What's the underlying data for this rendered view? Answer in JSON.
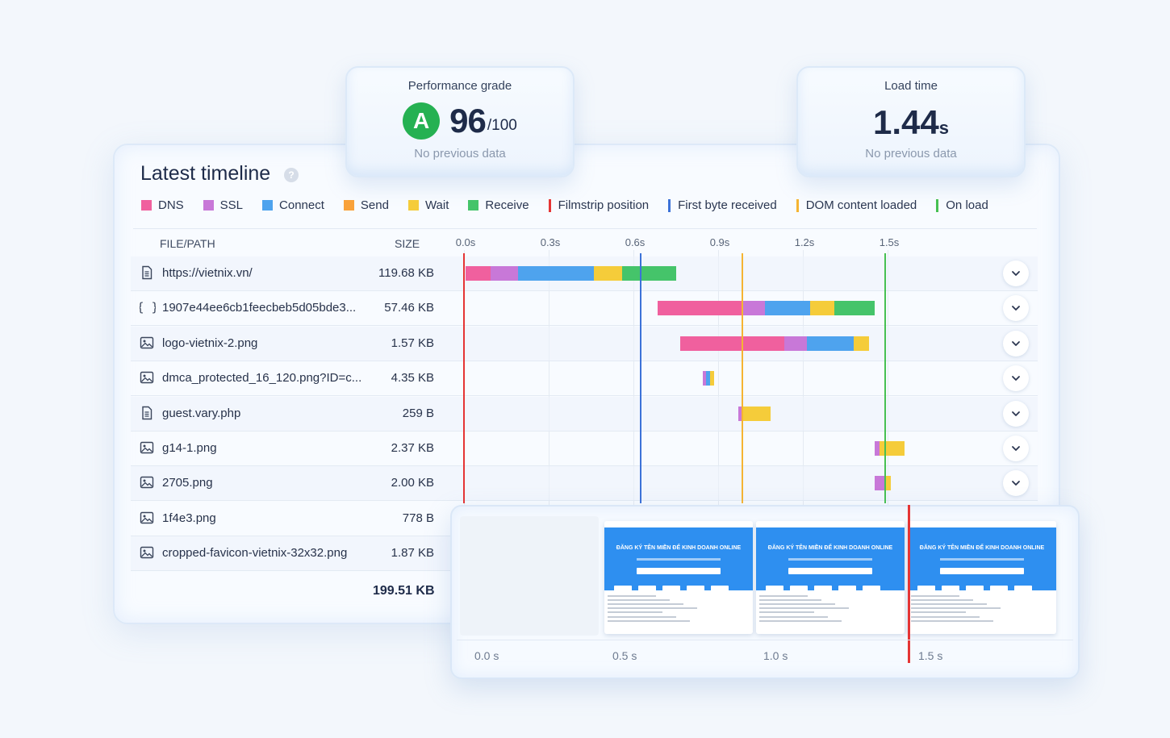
{
  "grade_card": {
    "label": "Performance grade",
    "grade": "A",
    "score": "96",
    "max": "/100",
    "note": "No previous data"
  },
  "load_card": {
    "label": "Load time",
    "value": "1.44",
    "unit": "s",
    "note": "No previous data"
  },
  "timeline": {
    "title": "Latest timeline",
    "help_glyph": "?",
    "legend": [
      {
        "label": "DNS",
        "color": "#f0609e",
        "kind": "swatch"
      },
      {
        "label": "SSL",
        "color": "#c878d8",
        "kind": "swatch"
      },
      {
        "label": "Connect",
        "color": "#4ea3ee",
        "kind": "swatch"
      },
      {
        "label": "Send",
        "color": "#f9a23a",
        "kind": "swatch"
      },
      {
        "label": "Wait",
        "color": "#f5cc3a",
        "kind": "swatch"
      },
      {
        "label": "Receive",
        "color": "#45c46a",
        "kind": "swatch"
      },
      {
        "label": "Filmstrip position",
        "color": "#e53535",
        "kind": "line"
      },
      {
        "label": "First byte received",
        "color": "#3c72d8",
        "kind": "line"
      },
      {
        "label": "DOM content loaded",
        "color": "#f5b432",
        "kind": "line"
      },
      {
        "label": "On load",
        "color": "#47c052",
        "kind": "line"
      }
    ],
    "columns": {
      "file": "FILE/PATH",
      "size": "SIZE"
    },
    "ticks": [
      "0.0s",
      "0.3s",
      "0.6s",
      "0.9s",
      "1.2s",
      "1.5s"
    ],
    "markers": [
      {
        "name": "filmstrip-position",
        "t": 0.0,
        "color": "#e53535"
      },
      {
        "name": "first-byte-received",
        "t": 0.625,
        "color": "#3c72d8"
      },
      {
        "name": "dom-content-loaded",
        "t": 0.985,
        "color": "#f5b432"
      },
      {
        "name": "on-load",
        "t": 1.49,
        "color": "#47c052"
      }
    ],
    "rows": [
      {
        "icon": "document-icon",
        "name": "https://vietnix.vn/",
        "size": "119.68 KB",
        "segments": [
          {
            "t": 0.005,
            "d": 0.09,
            "c": "#f0609e"
          },
          {
            "t": 0.095,
            "d": 0.095,
            "c": "#c878d8"
          },
          {
            "t": 0.19,
            "d": 0.27,
            "c": "#4ea3ee"
          },
          {
            "t": 0.46,
            "d": 0.1,
            "c": "#f5cc3a"
          },
          {
            "t": 0.56,
            "d": 0.19,
            "c": "#45c46a"
          }
        ]
      },
      {
        "icon": "code-icon",
        "name": "1907e44ee6cb1feecbeb5d05bde3...",
        "size": "57.46 KB",
        "segments": [
          {
            "t": 0.685,
            "d": 0.3,
            "c": "#f0609e"
          },
          {
            "t": 0.985,
            "d": 0.08,
            "c": "#c878d8"
          },
          {
            "t": 1.065,
            "d": 0.16,
            "c": "#4ea3ee"
          },
          {
            "t": 1.225,
            "d": 0.085,
            "c": "#f5cc3a"
          },
          {
            "t": 1.31,
            "d": 0.145,
            "c": "#45c46a"
          }
        ]
      },
      {
        "icon": "image-icon",
        "name": "logo-vietnix-2.png",
        "size": "1.57 KB",
        "segments": [
          {
            "t": 0.765,
            "d": 0.37,
            "c": "#f0609e"
          },
          {
            "t": 1.135,
            "d": 0.08,
            "c": "#c878d8"
          },
          {
            "t": 1.215,
            "d": 0.165,
            "c": "#4ea3ee"
          },
          {
            "t": 1.38,
            "d": 0.055,
            "c": "#f5cc3a"
          }
        ]
      },
      {
        "icon": "image-icon",
        "name": "dmca_protected_16_120.png?ID=c...",
        "size": "4.35 KB",
        "segments": [
          {
            "t": 0.845,
            "d": 0.012,
            "c": "#c878d8"
          },
          {
            "t": 0.857,
            "d": 0.015,
            "c": "#4ea3ee"
          },
          {
            "t": 0.872,
            "d": 0.015,
            "c": "#f5cc3a"
          }
        ]
      },
      {
        "icon": "document-icon",
        "name": "guest.vary.php",
        "size": "259 B",
        "segments": [
          {
            "t": 0.97,
            "d": 0.012,
            "c": "#c878d8"
          },
          {
            "t": 0.982,
            "d": 0.105,
            "c": "#f5cc3a"
          }
        ]
      },
      {
        "icon": "image-icon",
        "name": "g14-1.png",
        "size": "2.37 KB",
        "segments": [
          {
            "t": 1.455,
            "d": 0.015,
            "c": "#c878d8"
          },
          {
            "t": 1.47,
            "d": 0.09,
            "c": "#f5cc3a"
          }
        ]
      },
      {
        "icon": "image-icon",
        "name": "2705.png",
        "size": "2.00 KB",
        "segments": [
          {
            "t": 1.455,
            "d": 0.035,
            "c": "#c878d8"
          },
          {
            "t": 1.49,
            "d": 0.02,
            "c": "#f5cc3a"
          }
        ]
      },
      {
        "icon": "image-icon",
        "name": "1f4e3.png",
        "size": "778 B",
        "segments": []
      },
      {
        "icon": "image-icon",
        "name": "cropped-favicon-vietnix-32x32.png",
        "size": "1.87 KB",
        "segments": []
      }
    ],
    "total": "199.51 KB"
  },
  "filmstrip": {
    "frame_headline": "ĐĂNG KÝ TÊN MIỀN ĐỂ KINH DOANH ONLINE",
    "ticks": [
      "0.0 s",
      "0.5 s",
      "1.0 s",
      "1.5 s"
    ]
  }
}
